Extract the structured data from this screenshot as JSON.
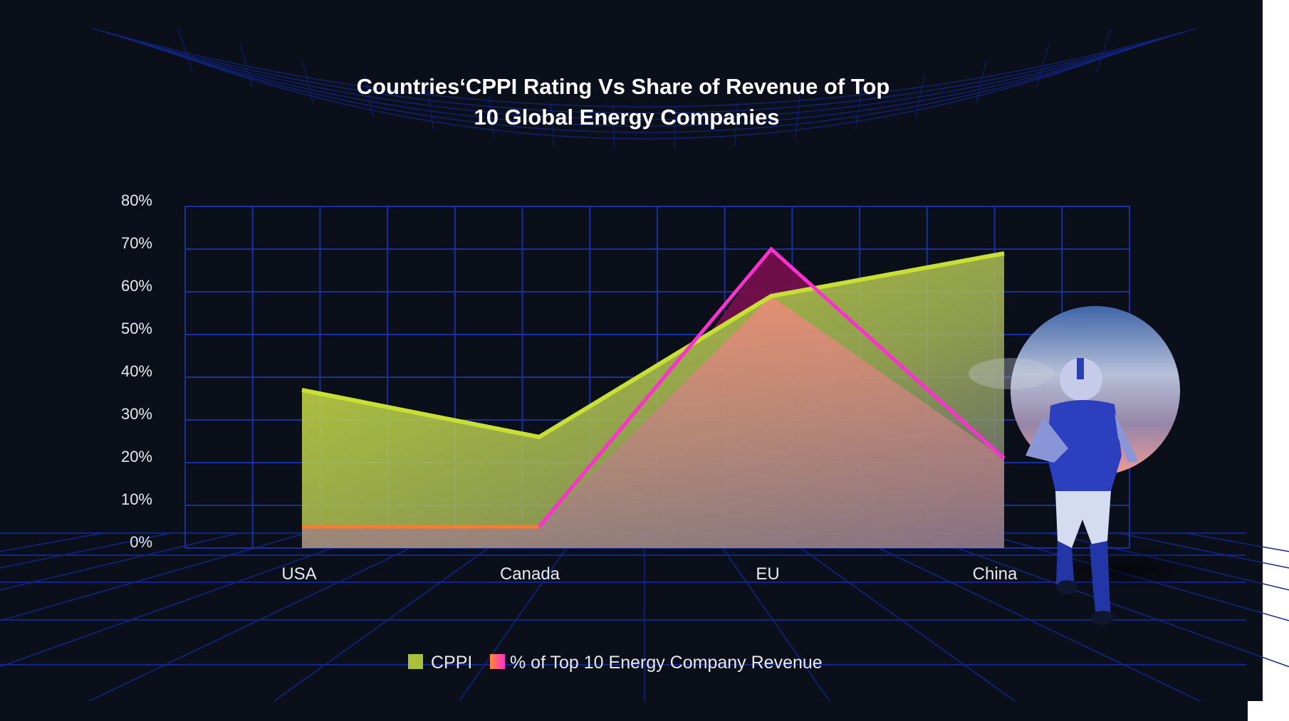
{
  "chart_data": {
    "type": "area",
    "title_lines": [
      "Countries‘CPPI Rating Vs Share of Revenue of Top",
      "10 Global  Energy Companies"
    ],
    "categories": [
      "USA",
      "Canada",
      "EU",
      "China"
    ],
    "series": [
      {
        "name": "CPPI",
        "values": [
          37,
          26,
          59,
          69
        ],
        "color": "#c8e034"
      },
      {
        "name": "% of Top 10 Energy Company Revenue",
        "values": [
          5,
          5,
          70,
          21
        ],
        "color": "#ff2fd0"
      }
    ],
    "y_ticks": [
      "0%",
      "10%",
      "20%",
      "30%",
      "40%",
      "50%",
      "60%",
      "70%",
      "80%"
    ],
    "ylim": [
      0,
      80
    ],
    "grid": true,
    "legend_position": "bottom-center",
    "xlabel": "",
    "ylabel": ""
  },
  "colors": {
    "background": "#0a0f1a",
    "grid": "#1a2fa0",
    "floor_grid": "#13258a"
  }
}
